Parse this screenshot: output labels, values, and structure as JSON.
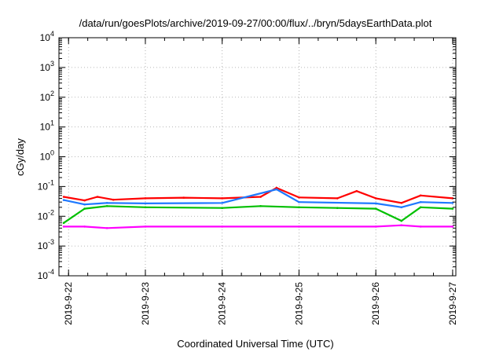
{
  "chart_data": {
    "type": "line",
    "title": "/data/run/goesPlots/archive/2019-09-27/00:00/flux/../bryn/5daysEarthData.plot",
    "xlabel": "Coordinated Universal Time (UTC)",
    "ylabel": "cGy/day",
    "yscale": "log",
    "ylim": [
      0.0001,
      10000
    ],
    "xlim": [
      "2019-09-21T21:00",
      "2019-09-27T01:00"
    ],
    "grid": true,
    "x_ticks": [
      "2019-9-22",
      "2019-9-23",
      "2019-9-24",
      "2019-9-25",
      "2019-9-26",
      "2019-9-27"
    ],
    "y_ticks": [
      {
        "base": "10",
        "exp": "-4",
        "value": 0.0001
      },
      {
        "base": "10",
        "exp": "-3",
        "value": 0.001
      },
      {
        "base": "10",
        "exp": "-2",
        "value": 0.01
      },
      {
        "base": "10",
        "exp": "-1",
        "value": 0.1
      },
      {
        "base": "10",
        "exp": "0",
        "value": 1
      },
      {
        "base": "10",
        "exp": "1",
        "value": 10
      },
      {
        "base": "10",
        "exp": "2",
        "value": 100
      },
      {
        "base": "10",
        "exp": "3",
        "value": 1000
      },
      {
        "base": "10",
        "exp": "4",
        "value": 10000
      }
    ],
    "series": [
      {
        "color": "#ff0000",
        "values": [
          [
            "2019-09-21T22:30",
            0.045
          ],
          [
            "2019-09-22T05:00",
            0.034
          ],
          [
            "2019-09-22T09:00",
            0.045
          ],
          [
            "2019-09-22T14:00",
            0.036
          ],
          [
            "2019-09-23T00:00",
            0.04
          ],
          [
            "2019-09-23T12:00",
            0.042
          ],
          [
            "2019-09-24T00:00",
            0.04
          ],
          [
            "2019-09-24T12:00",
            0.045
          ],
          [
            "2019-09-24T17:00",
            0.09
          ],
          [
            "2019-09-25T00:00",
            0.043
          ],
          [
            "2019-09-25T12:00",
            0.04
          ],
          [
            "2019-09-25T18:00",
            0.07
          ],
          [
            "2019-09-26T00:00",
            0.04
          ],
          [
            "2019-09-26T08:00",
            0.028
          ],
          [
            "2019-09-26T14:00",
            0.05
          ],
          [
            "2019-09-27T00:00",
            0.04
          ]
        ]
      },
      {
        "color": "#00c000",
        "values": [
          [
            "2019-09-21T22:30",
            0.006
          ],
          [
            "2019-09-22T05:00",
            0.018
          ],
          [
            "2019-09-22T12:00",
            0.022
          ],
          [
            "2019-09-23T00:00",
            0.02
          ],
          [
            "2019-09-24T00:00",
            0.019
          ],
          [
            "2019-09-24T12:00",
            0.022
          ],
          [
            "2019-09-25T00:00",
            0.02
          ],
          [
            "2019-09-25T12:00",
            0.019
          ],
          [
            "2019-09-26T00:00",
            0.018
          ],
          [
            "2019-09-26T08:00",
            0.007
          ],
          [
            "2019-09-26T14:00",
            0.02
          ],
          [
            "2019-09-27T00:00",
            0.018
          ]
        ]
      },
      {
        "color": "#1e78ff",
        "values": [
          [
            "2019-09-21T22:30",
            0.035
          ],
          [
            "2019-09-22T05:00",
            0.025
          ],
          [
            "2019-09-22T12:00",
            0.028
          ],
          [
            "2019-09-23T00:00",
            0.027
          ],
          [
            "2019-09-24T00:00",
            0.028
          ],
          [
            "2019-09-24T17:00",
            0.08
          ],
          [
            "2019-09-25T00:00",
            0.03
          ],
          [
            "2019-09-26T00:00",
            0.027
          ],
          [
            "2019-09-26T08:00",
            0.02
          ],
          [
            "2019-09-26T14:00",
            0.03
          ],
          [
            "2019-09-27T00:00",
            0.028
          ]
        ]
      },
      {
        "color": "#ff00ff",
        "values": [
          [
            "2019-09-21T22:30",
            0.0045
          ],
          [
            "2019-09-22T05:00",
            0.0045
          ],
          [
            "2019-09-22T12:00",
            0.004
          ],
          [
            "2019-09-23T00:00",
            0.0045
          ],
          [
            "2019-09-24T00:00",
            0.0045
          ],
          [
            "2019-09-25T00:00",
            0.0045
          ],
          [
            "2019-09-26T00:00",
            0.0045
          ],
          [
            "2019-09-26T08:00",
            0.005
          ],
          [
            "2019-09-26T14:00",
            0.0045
          ],
          [
            "2019-09-27T00:00",
            0.0045
          ]
        ]
      }
    ]
  }
}
